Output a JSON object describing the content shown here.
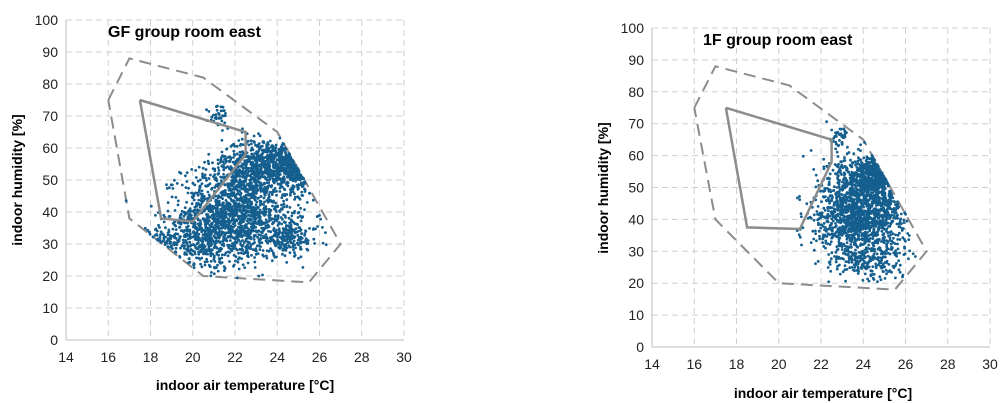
{
  "chart_data": [
    {
      "type": "scatter",
      "title": "GF group room east",
      "xlabel": "indoor air temperature [°C]",
      "ylabel": "indoor humidity [%]",
      "xlim": [
        14,
        30
      ],
      "ylim": [
        0,
        100
      ],
      "xticks": [
        14,
        16,
        18,
        20,
        22,
        24,
        26,
        28,
        30
      ],
      "yticks": [
        0,
        10,
        20,
        30,
        40,
        50,
        60,
        70,
        80,
        90,
        100
      ],
      "grid": true,
      "legend": "none",
      "point_color": "#155f8f",
      "comfort_zone_outer": [
        [
          16,
          75
        ],
        [
          17,
          88
        ],
        [
          20.5,
          82
        ],
        [
          24,
          65
        ],
        [
          27,
          30
        ],
        [
          25.5,
          18
        ],
        [
          20.5,
          20
        ],
        [
          17,
          38
        ],
        [
          16,
          75
        ]
      ],
      "comfort_zone_inner": [
        [
          17.5,
          75
        ],
        [
          22.5,
          65
        ],
        [
          22.5,
          58
        ],
        [
          20,
          37
        ],
        [
          18.5,
          38
        ],
        [
          17.5,
          75
        ]
      ],
      "scatter_clusters": [
        {
          "cx": 22.1,
          "cy": 40,
          "sx": 1.3,
          "sy": 7.5,
          "n": 1400
        },
        {
          "cx": 23.6,
          "cy": 55,
          "sx": 1.1,
          "sy": 4,
          "n": 700
        },
        {
          "cx": 20.4,
          "cy": 31,
          "sx": 1.0,
          "sy": 5,
          "n": 350
        },
        {
          "cx": 24.6,
          "cy": 32,
          "sx": 0.7,
          "sy": 3,
          "n": 200
        },
        {
          "cx": 25.3,
          "cy": 55,
          "sx": 0.6,
          "sy": 3.5,
          "n": 200
        },
        {
          "cx": 21.3,
          "cy": 70,
          "sx": 0.3,
          "sy": 2,
          "n": 35
        },
        {
          "cx": 18.4,
          "cy": 31,
          "sx": 0.5,
          "sy": 2,
          "n": 50
        }
      ]
    },
    {
      "type": "scatter",
      "title": "1F group room east",
      "xlabel": "indoor air temperature [°C]",
      "ylabel": "indoor humidity [%]",
      "xlim": [
        14,
        30
      ],
      "ylim": [
        0,
        100
      ],
      "xticks": [
        14,
        16,
        18,
        20,
        22,
        24,
        26,
        28,
        30
      ],
      "yticks": [
        0,
        10,
        20,
        30,
        40,
        50,
        60,
        70,
        80,
        90,
        100
      ],
      "grid": true,
      "legend": "none",
      "point_color": "#155f8f",
      "comfort_zone_outer": [
        [
          16,
          75
        ],
        [
          17,
          88
        ],
        [
          20.5,
          82
        ],
        [
          24,
          65
        ],
        [
          27,
          30
        ],
        [
          25.5,
          18
        ],
        [
          20,
          20
        ],
        [
          17,
          40
        ],
        [
          16,
          75
        ]
      ],
      "comfort_zone_inner": [
        [
          17.5,
          75
        ],
        [
          22.5,
          65
        ],
        [
          22.5,
          58
        ],
        [
          21,
          37
        ],
        [
          18.5,
          37.5
        ],
        [
          17.5,
          75
        ]
      ],
      "scatter_clusters": [
        {
          "cx": 23.9,
          "cy": 42,
          "sx": 1.1,
          "sy": 6.5,
          "n": 1400
        },
        {
          "cx": 25,
          "cy": 54,
          "sx": 1.0,
          "sy": 3.5,
          "n": 500
        },
        {
          "cx": 27.2,
          "cy": 52.5,
          "sx": 0.6,
          "sy": 1.5,
          "n": 220
        },
        {
          "cx": 22.9,
          "cy": 66.5,
          "sx": 0.25,
          "sy": 1.8,
          "n": 40
        },
        {
          "cx": 24.2,
          "cy": 27,
          "sx": 0.8,
          "sy": 3,
          "n": 200
        }
      ]
    }
  ]
}
